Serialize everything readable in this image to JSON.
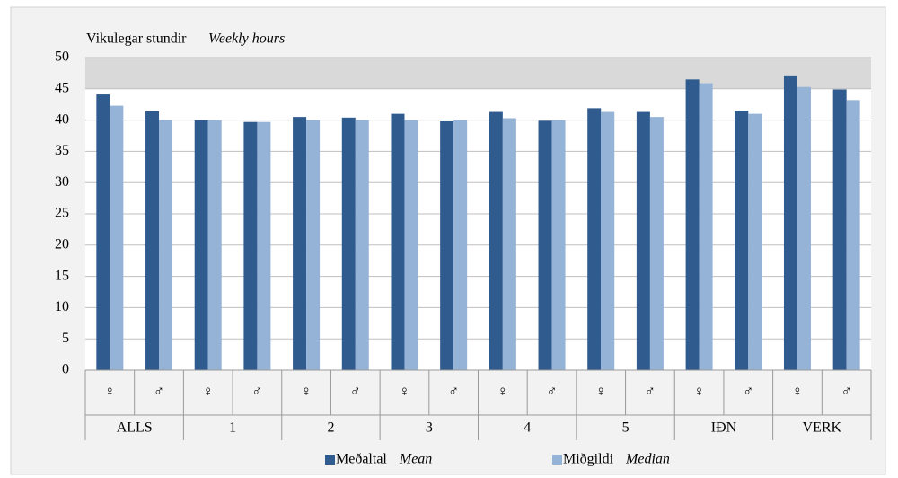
{
  "chart_data": {
    "type": "bar",
    "title": "Vikulegar stundir",
    "title_en": "Weekly hours",
    "categories": [
      "♀",
      "♂",
      "♀",
      "♂",
      "♀",
      "♂",
      "♀",
      "♂",
      "♀",
      "♂",
      "♀",
      "♂",
      "♀",
      "♂",
      "♀",
      "♂"
    ],
    "groups": [
      "ALLS",
      "1",
      "2",
      "3",
      "4",
      "5",
      "IÐN",
      "VERK"
    ],
    "series": [
      {
        "name": "Meðaltal",
        "name_en": "Mean",
        "color": "#2f5b8f",
        "values": [
          44.1,
          41.4,
          40.0,
          39.7,
          40.5,
          40.4,
          41.0,
          39.8,
          41.3,
          39.9,
          41.9,
          41.3,
          46.5,
          41.5,
          47.0,
          44.9
        ]
      },
      {
        "name": "Miðgildi",
        "name_en": "Median",
        "color": "#95b3d7",
        "values": [
          42.3,
          40.0,
          40.0,
          39.7,
          40.0,
          40.0,
          40.0,
          40.0,
          40.3,
          40.0,
          41.3,
          40.5,
          45.9,
          41.0,
          45.3,
          43.2
        ]
      }
    ],
    "ylim": [
      0,
      50
    ],
    "yticks": [
      0,
      5,
      10,
      15,
      20,
      25,
      30,
      35,
      40,
      45,
      50
    ],
    "grid": true,
    "band": {
      "from": 45,
      "to": 50,
      "color": "#d9d9d9"
    },
    "legend": "bottom"
  }
}
